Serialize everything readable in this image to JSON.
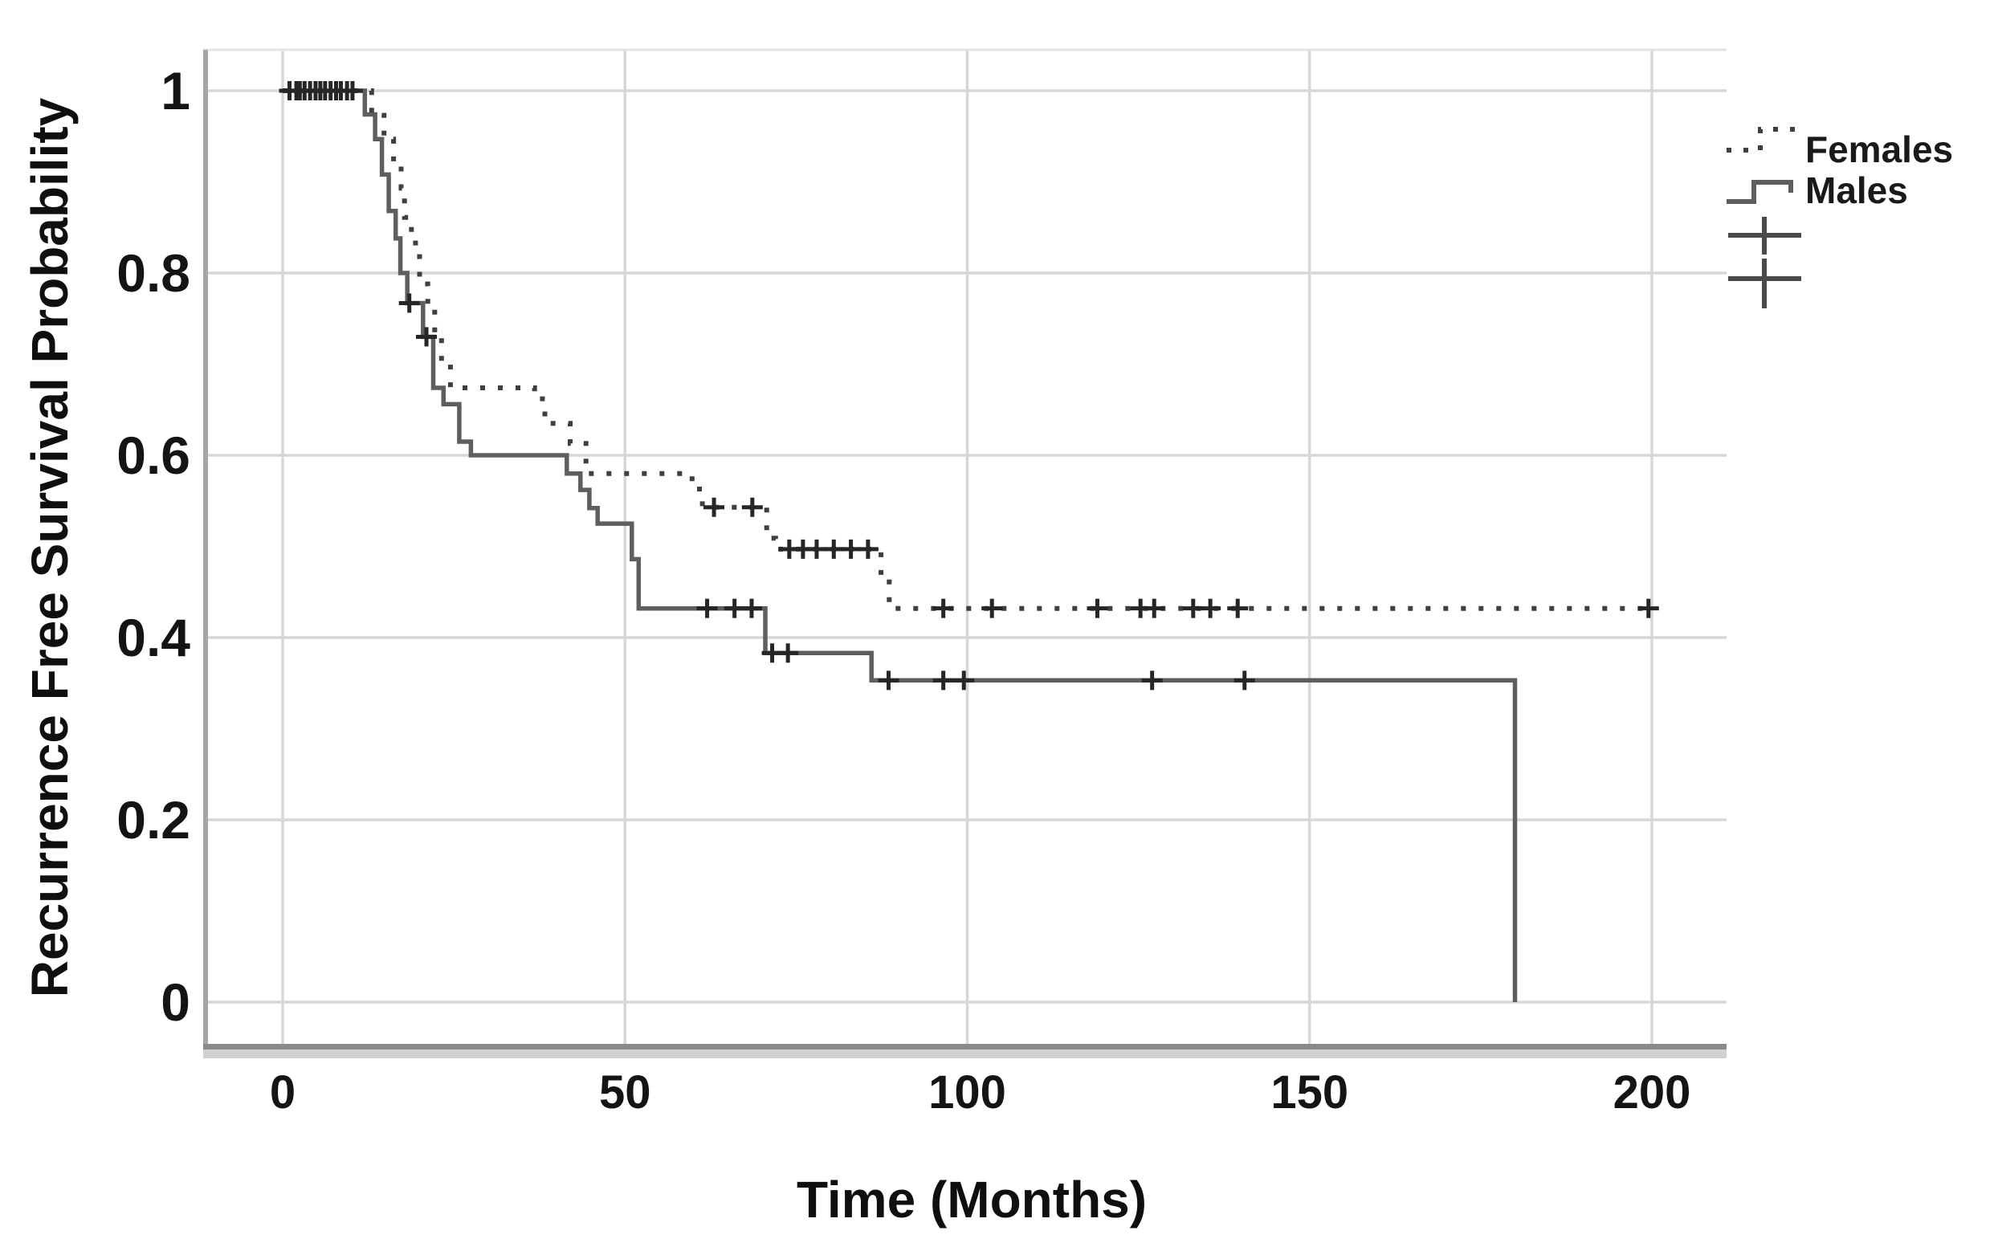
{
  "chart_data": {
    "type": "line",
    "subtype": "kaplan-meier-step",
    "title": "",
    "xlabel": "Time (Months)",
    "ylabel": "Recurrence Free Survival Probability",
    "grid": true,
    "xlim": [
      -12,
      211
    ],
    "ylim": [
      0,
      1.04
    ],
    "x_ticks": [
      {
        "v": 0,
        "label": "0"
      },
      {
        "v": 50,
        "label": "50"
      },
      {
        "v": 100,
        "label": "100"
      },
      {
        "v": 150,
        "label": "150"
      },
      {
        "v": 200,
        "label": "200"
      }
    ],
    "y_ticks": [
      {
        "v": 1.0,
        "label": "1"
      },
      {
        "v": 0.8,
        "label": "0.8"
      },
      {
        "v": 0.6,
        "label": "0.6"
      },
      {
        "v": 0.4,
        "label": "0.4"
      },
      {
        "v": 0.2,
        "label": "0.2"
      },
      {
        "v": 0.0,
        "label": "0"
      }
    ],
    "legend": {
      "position": "top-right",
      "entries": [
        {
          "label": "Females",
          "style": "dotted"
        },
        {
          "label": "Males",
          "style": "solid"
        },
        {
          "label": "",
          "style": "censor-plus"
        },
        {
          "label": "",
          "style": "censor-plus"
        }
      ]
    },
    "series": [
      {
        "name": "Females",
        "style": "dotted",
        "color": "#3f3f3f",
        "steps": [
          [
            0,
            1.0
          ],
          [
            13,
            0.973
          ],
          [
            14.8,
            0.947
          ],
          [
            16.2,
            0.92
          ],
          [
            17.3,
            0.893
          ],
          [
            17.8,
            0.861
          ],
          [
            18.8,
            0.838
          ],
          [
            19.4,
            0.818
          ],
          [
            20,
            0.788
          ],
          [
            21.2,
            0.76
          ],
          [
            22.2,
            0.73
          ],
          [
            23.2,
            0.7
          ],
          [
            24.5,
            0.674
          ],
          [
            36.8,
            0.662
          ],
          [
            38.3,
            0.635
          ],
          [
            42,
            0.613
          ],
          [
            44.3,
            0.58
          ],
          [
            59.8,
            0.563
          ],
          [
            61.3,
            0.543
          ],
          [
            70.7,
            0.509
          ],
          [
            72,
            0.497
          ],
          [
            87.4,
            0.465
          ],
          [
            88.6,
            0.432
          ],
          [
            200,
            0.432
          ]
        ],
        "censored": [
          [
            2,
            1
          ],
          [
            3.2,
            1
          ],
          [
            4.8,
            1
          ],
          [
            6.2,
            1
          ],
          [
            7.8,
            1
          ],
          [
            9.4,
            1
          ],
          [
            63,
            0.543
          ],
          [
            68.6,
            0.543
          ],
          [
            74,
            0.497
          ],
          [
            76,
            0.497
          ],
          [
            78,
            0.497
          ],
          [
            80.5,
            0.497
          ],
          [
            83,
            0.497
          ],
          [
            85.5,
            0.497
          ],
          [
            96.5,
            0.432
          ],
          [
            103.6,
            0.432
          ],
          [
            119,
            0.432
          ],
          [
            125.3,
            0.432
          ],
          [
            127.3,
            0.432
          ],
          [
            133,
            0.432
          ],
          [
            135.5,
            0.432
          ],
          [
            139.5,
            0.432
          ],
          [
            199.5,
            0.432
          ]
        ]
      },
      {
        "name": "Males",
        "style": "solid",
        "color": "#5e5e5e",
        "steps": [
          [
            0,
            1.0
          ],
          [
            12,
            0.974
          ],
          [
            13.5,
            0.947
          ],
          [
            14.5,
            0.908
          ],
          [
            15.5,
            0.868
          ],
          [
            16.5,
            0.838
          ],
          [
            17.2,
            0.8
          ],
          [
            18.2,
            0.767
          ],
          [
            20.5,
            0.73
          ],
          [
            22,
            0.674
          ],
          [
            23.5,
            0.656
          ],
          [
            25.8,
            0.615
          ],
          [
            27.5,
            0.6
          ],
          [
            41.5,
            0.58
          ],
          [
            43.5,
            0.562
          ],
          [
            44.8,
            0.542
          ],
          [
            46,
            0.525
          ],
          [
            51,
            0.486
          ],
          [
            52,
            0.432
          ],
          [
            70.5,
            0.383
          ],
          [
            86,
            0.353
          ],
          [
            180,
            0.0
          ]
        ],
        "censored": [
          [
            1,
            1
          ],
          [
            2.5,
            1
          ],
          [
            4,
            1
          ],
          [
            5.5,
            1
          ],
          [
            7,
            1
          ],
          [
            8.5,
            1
          ],
          [
            10.2,
            1
          ],
          [
            18.5,
            0.767
          ],
          [
            21,
            0.73
          ],
          [
            62,
            0.432
          ],
          [
            66,
            0.432
          ],
          [
            68.5,
            0.432
          ],
          [
            71.5,
            0.383
          ],
          [
            73.8,
            0.383
          ],
          [
            88.5,
            0.353
          ],
          [
            96.5,
            0.353
          ],
          [
            99.5,
            0.353
          ],
          [
            127,
            0.353
          ],
          [
            140.5,
            0.353
          ]
        ]
      }
    ]
  },
  "colors": {
    "grid": "#d7d7d7",
    "frame_left": "#a6a6a6",
    "frame_top": "#e4e4e4",
    "axis_band_dark": "#8a8a8a",
    "axis_band_light": "#d2d2d2",
    "censor": "#262626",
    "text": "#141414",
    "background": "#ffffff"
  }
}
